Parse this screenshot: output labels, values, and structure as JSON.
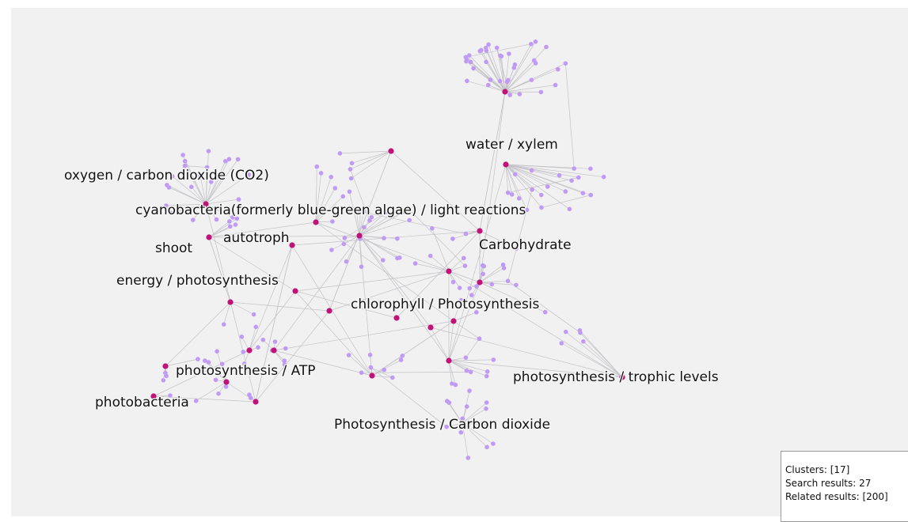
{
  "clusters": [
    {
      "label": "water / xylem"
    },
    {
      "label": "oxygen / carbon dioxide (CO2)"
    },
    {
      "label": "cyanobacteria(formerly blue-green algae) / light reactions"
    },
    {
      "label": "autotroph"
    },
    {
      "label": "shoot"
    },
    {
      "label": "Carbohydrate"
    },
    {
      "label": "energy / photosynthesis"
    },
    {
      "label": "chlorophyll / Photosynthesis"
    },
    {
      "label": "photosynthesis / ATP"
    },
    {
      "label": "photosynthesis / trophic levels"
    },
    {
      "label": "photobacteria"
    },
    {
      "label": "Photosynthesis / Carbon dioxide"
    }
  ],
  "stats": {
    "clusters_line": "Clusters: [17]",
    "search_line": "Search results: 27",
    "related_line": "Related results: [200]"
  },
  "colors": {
    "background": "#f1f1f1",
    "edge": "#c3c3c8",
    "related_node": "#c09af4",
    "search_node": "#c1127a"
  }
}
